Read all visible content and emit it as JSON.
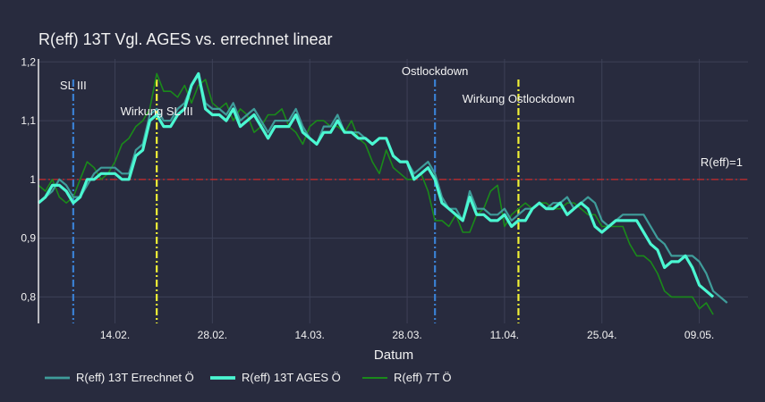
{
  "chart_data": {
    "type": "line",
    "title": "R(eff) 13T Vgl. AGES vs. errechnet linear",
    "xlabel": "Datum",
    "ylabel": "",
    "x_start": "2021-02-03",
    "x_step_days": 1,
    "xlim": [
      "2021-02-03",
      "2021-05-16"
    ],
    "ylim": [
      0.755,
      1.205
    ],
    "grid": true,
    "legend_position": "bottom",
    "x_tick_labels": [
      {
        "date": "2021-02-14",
        "label": "14.02."
      },
      {
        "date": "2021-02-28",
        "label": "28.02."
      },
      {
        "date": "2021-03-14",
        "label": "14.03."
      },
      {
        "date": "2021-03-28",
        "label": "28.03."
      },
      {
        "date": "2021-04-11",
        "label": "11.04."
      },
      {
        "date": "2021-04-25",
        "label": "25.04."
      },
      {
        "date": "2021-05-09",
        "label": "09.05."
      }
    ],
    "y_tick_labels": [
      {
        "value": 0.8,
        "label": "0,8"
      },
      {
        "value": 0.9,
        "label": "0,9"
      },
      {
        "value": 1.0,
        "label": "1"
      },
      {
        "value": 1.1,
        "label": "1,1"
      },
      {
        "value": 1.2,
        "label": "1,2"
      }
    ],
    "series": [
      {
        "name": "R(eff) 13T Errechnet Ö",
        "color": "#3f9c9a",
        "values": [
          0.96,
          0.97,
          0.98,
          1.0,
          0.99,
          0.97,
          0.97,
          0.99,
          1.01,
          1.02,
          1.02,
          1.02,
          1.01,
          1.01,
          1.05,
          1.06,
          1.11,
          1.12,
          1.1,
          1.1,
          1.12,
          1.13,
          1.16,
          1.18,
          1.13,
          1.12,
          1.12,
          1.11,
          1.13,
          1.1,
          1.11,
          1.12,
          1.1,
          1.08,
          1.1,
          1.1,
          1.1,
          1.12,
          1.09,
          1.07,
          1.06,
          1.09,
          1.09,
          1.11,
          1.08,
          1.08,
          1.08,
          1.07,
          1.06,
          1.07,
          1.07,
          1.04,
          1.03,
          1.03,
          1.01,
          1.02,
          1.03,
          1.01,
          0.97,
          0.95,
          0.95,
          0.93,
          0.98,
          0.95,
          0.95,
          0.94,
          0.94,
          0.95,
          0.93,
          0.94,
          0.95,
          0.95,
          0.96,
          0.95,
          0.96,
          0.96,
          0.97,
          0.95,
          0.96,
          0.97,
          0.96,
          0.93,
          0.92,
          0.93,
          0.94,
          0.94,
          0.94,
          0.94,
          0.92,
          0.9,
          0.89,
          0.87,
          0.87,
          0.87,
          0.87,
          0.86,
          0.84,
          0.81,
          0.8,
          0.79
        ]
      },
      {
        "name": "R(eff) 13T AGES Ö",
        "color": "#4bf7d2",
        "values": [
          0.96,
          0.97,
          0.99,
          0.99,
          0.98,
          0.96,
          0.97,
          1.0,
          1.0,
          1.01,
          1.01,
          1.01,
          1.0,
          1.0,
          1.04,
          1.05,
          1.1,
          1.11,
          1.09,
          1.09,
          1.11,
          1.12,
          1.16,
          1.18,
          1.12,
          1.11,
          1.11,
          1.1,
          1.12,
          1.09,
          1.1,
          1.11,
          1.09,
          1.07,
          1.09,
          1.09,
          1.09,
          1.11,
          1.08,
          1.07,
          1.06,
          1.08,
          1.08,
          1.1,
          1.08,
          1.08,
          1.07,
          1.07,
          1.06,
          1.07,
          1.07,
          1.04,
          1.03,
          1.03,
          1.0,
          1.01,
          1.02,
          1.0,
          0.96,
          0.95,
          0.94,
          0.93,
          0.97,
          0.94,
          0.94,
          0.93,
          0.93,
          0.94,
          0.92,
          0.93,
          0.93,
          0.95,
          0.96,
          0.95,
          0.95,
          0.96,
          0.94,
          0.95,
          0.96,
          0.95,
          0.92,
          0.91,
          0.92,
          0.93,
          0.93,
          0.93,
          0.93,
          0.91,
          0.89,
          0.88,
          0.85,
          0.86,
          0.86,
          0.87,
          0.85,
          0.82,
          0.81,
          0.8
        ]
      },
      {
        "name": "R(eff) 7T Ö",
        "color": "#1a8a1a",
        "values": [
          0.99,
          0.98,
          1.0,
          0.97,
          0.96,
          0.97,
          1.0,
          1.03,
          1.02,
          1.0,
          1.01,
          1.03,
          1.06,
          1.07,
          1.09,
          1.1,
          1.12,
          1.18,
          1.15,
          1.15,
          1.14,
          1.16,
          1.13,
          1.16,
          1.17,
          1.13,
          1.12,
          1.13,
          1.1,
          1.12,
          1.11,
          1.08,
          1.09,
          1.11,
          1.11,
          1.12,
          1.09,
          1.08,
          1.06,
          1.09,
          1.1,
          1.1,
          1.09,
          1.09,
          1.08,
          1.1,
          1.07,
          1.06,
          1.03,
          1.01,
          1.05,
          1.02,
          1.01,
          1.0,
          1.0,
          1.01,
          0.98,
          0.93,
          0.93,
          0.92,
          0.94,
          0.91,
          0.91,
          0.94,
          0.95,
          0.98,
          0.99,
          0.92,
          0.94,
          0.95,
          0.96,
          0.95,
          0.96,
          0.96,
          0.95,
          0.95,
          0.96,
          0.96,
          0.95,
          0.94,
          0.94,
          0.92,
          0.92,
          0.92,
          0.92,
          0.89,
          0.87,
          0.87,
          0.86,
          0.84,
          0.81,
          0.8,
          0.8,
          0.8,
          0.8,
          0.78,
          0.79,
          0.77
        ]
      }
    ],
    "reference_lines": [
      {
        "type": "horizontal",
        "value": 1.0,
        "label": "R(eff)=1",
        "color": "#cc2b2b",
        "style": "dashdot"
      },
      {
        "type": "vertical",
        "date": "2021-02-08",
        "label": "SL III",
        "color": "#3a7fd1",
        "style": "dashdot"
      },
      {
        "type": "vertical",
        "date": "2021-02-20",
        "label": "Wirkung SL III",
        "color": "#f0f035",
        "style": "dashdot"
      },
      {
        "type": "vertical",
        "date": "2021-04-01",
        "label": "Ostlockdown",
        "color": "#3a7fd1",
        "style": "dashdot"
      },
      {
        "type": "vertical",
        "date": "2021-04-13",
        "label": "Wirkung Ostlockdown",
        "color": "#f0f035",
        "style": "dashdot"
      }
    ]
  },
  "colors": {
    "background": "#282b3e",
    "grid": "#3d4157",
    "text": "#f2f2f2"
  }
}
